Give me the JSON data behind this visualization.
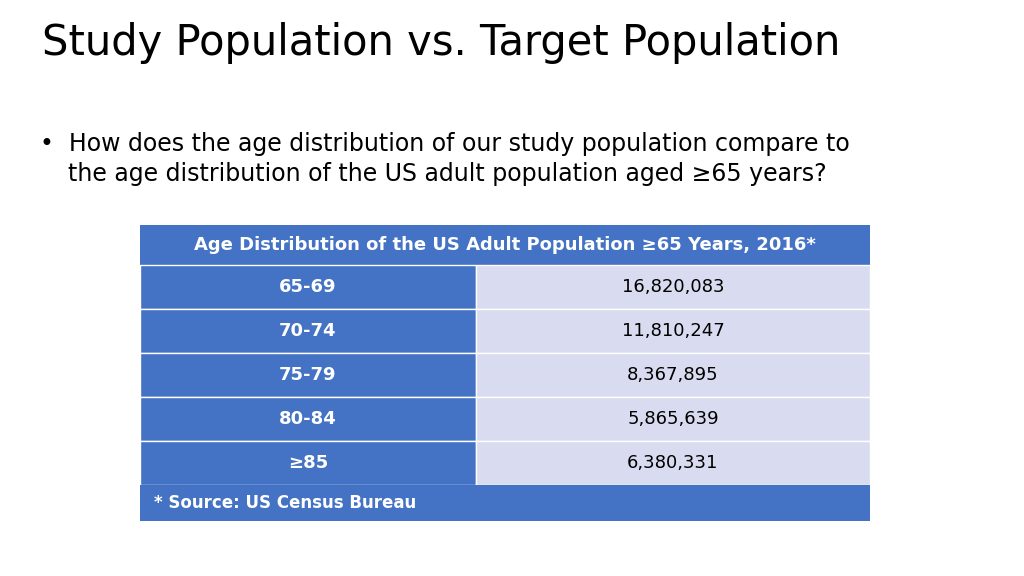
{
  "title": "Study Population vs. Target Population",
  "bullet_line1": "How does the age distribution of our study population compare to",
  "bullet_line2": "the age distribution of the US adult population aged ≥65 years?",
  "table_header": "Age Distribution of the US Adult Population ≥65 Years, 2016*",
  "table_rows": [
    [
      "65-69",
      "16,820,083"
    ],
    [
      "70-74",
      "11,810,247"
    ],
    [
      "75-79",
      "8,367,895"
    ],
    [
      "80-84",
      "5,865,639"
    ],
    [
      "≥85",
      "6,380,331"
    ]
  ],
  "table_footer": "* Source: US Census Bureau",
  "header_bg": "#4472C4",
  "row_left_bg": "#4472C4",
  "row_right_bg": "#D9DCF0",
  "footer_bg": "#4472C4",
  "header_text_color": "#FFFFFF",
  "row_left_text_color": "#FFFFFF",
  "row_right_text_color": "#000000",
  "footer_text_color": "#FFFFFF",
  "bg_color": "#FFFFFF",
  "title_fontsize": 30,
  "bullet_fontsize": 17,
  "table_header_fontsize": 13,
  "table_row_fontsize": 13,
  "table_footer_fontsize": 12
}
